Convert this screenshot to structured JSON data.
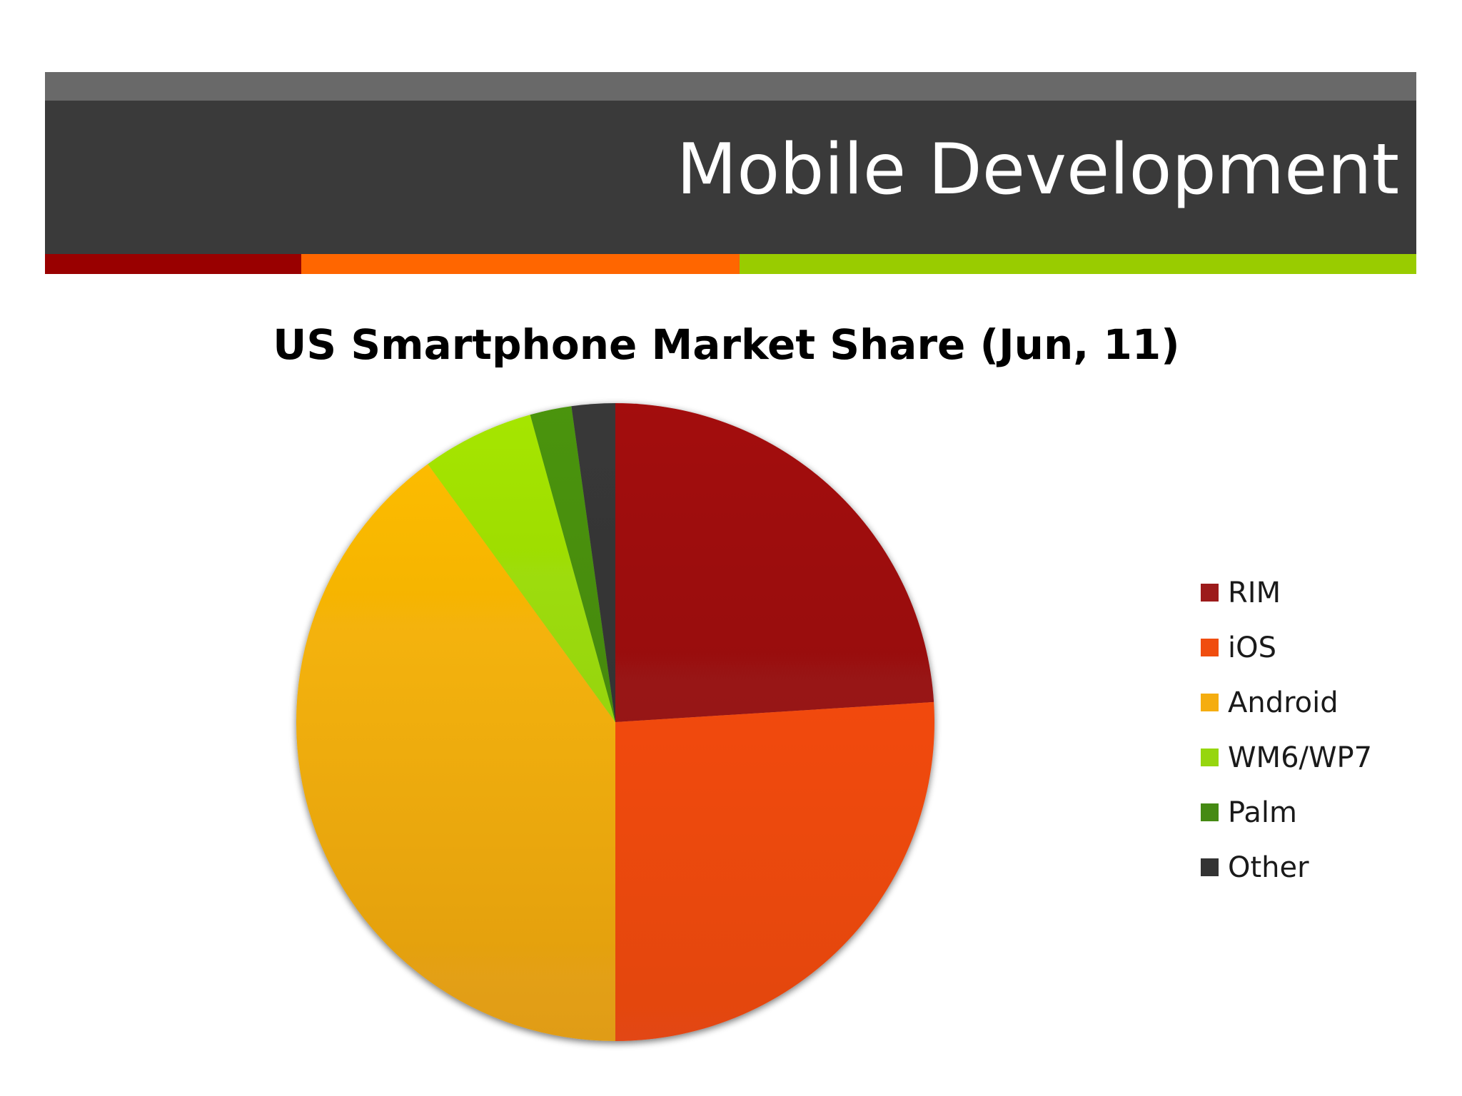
{
  "slide": {
    "title": "Mobile Development"
  },
  "theme": {
    "header_top_color": "#696969",
    "header_band_color": "#3a3a3a",
    "accent_bar": [
      {
        "color": "#990000",
        "fraction": 0.1868
      },
      {
        "color": "#ff6600",
        "fraction": 0.3196
      },
      {
        "color": "#99cc00",
        "fraction": 0.4936
      }
    ]
  },
  "chart_data": {
    "type": "pie",
    "title": "US Smartphone Market Share (Jun, 11)",
    "legend_position": "right",
    "slices": [
      {
        "label": "RIM",
        "value": 24,
        "color_top": "#a30808",
        "color_bottom": "#8a1f1f",
        "legend_color": "#9c1b1b"
      },
      {
        "label": "iOS",
        "value": 26,
        "color_top": "#ff4d00",
        "color_bottom": "#e24612",
        "legend_color": "#f04d0f"
      },
      {
        "label": "Android",
        "value": 40,
        "color_top": "#ffbf00",
        "color_bottom": "#e09c14",
        "legend_color": "#f5ad10"
      },
      {
        "label": "WM6/WP7",
        "value": 5.7,
        "color_top": "#a6e600",
        "color_bottom": "#86c21a",
        "legend_color": "#96d60e"
      },
      {
        "label": "Palm",
        "value": 2.1,
        "color_top": "#4b9410",
        "color_bottom": "#3f7e12",
        "legend_color": "#458a13"
      },
      {
        "label": "Other",
        "value": 2.2,
        "color_top": "#383838",
        "color_bottom": "#2e2e2e",
        "legend_color": "#333333"
      }
    ]
  }
}
